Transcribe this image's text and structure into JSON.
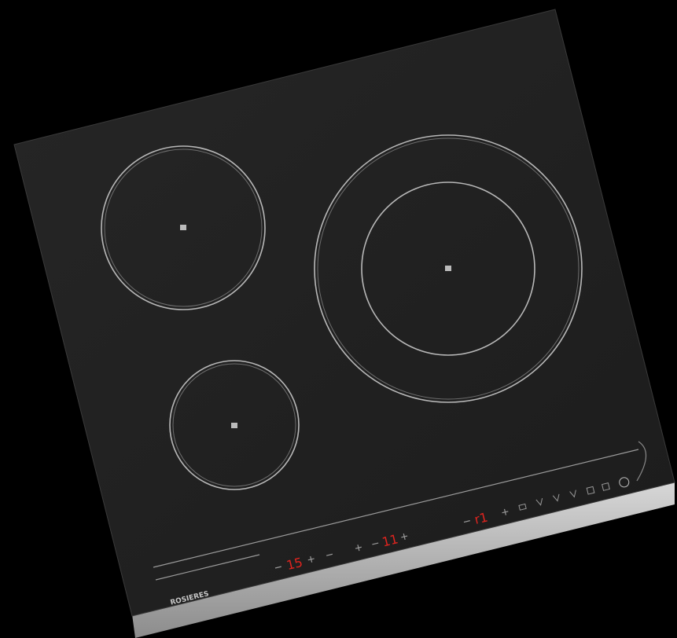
{
  "brand": "ROSIERES",
  "displays": [
    "15",
    "11",
    "r1"
  ]
}
